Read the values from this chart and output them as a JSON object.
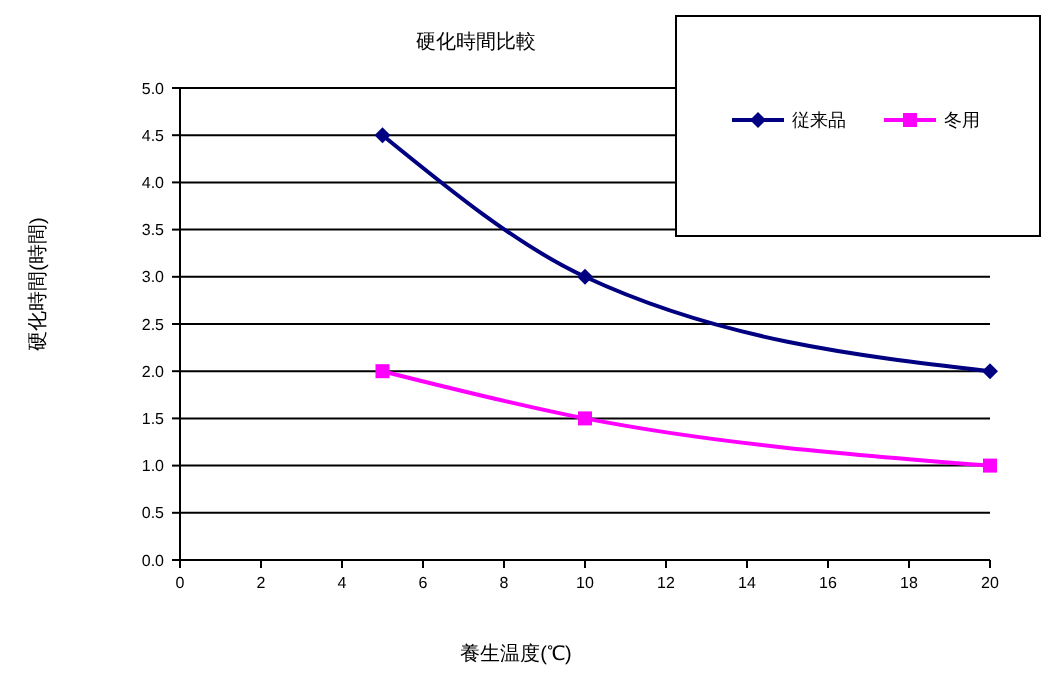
{
  "chart_data": {
    "type": "line",
    "title": "硬化時間比較",
    "xlabel": "養生温度(℃)",
    "ylabel": "硬化時間(時間)",
    "xlim": [
      0,
      20
    ],
    "xticks": [
      0,
      2,
      4,
      6,
      8,
      10,
      12,
      14,
      16,
      18,
      20
    ],
    "ylim": [
      0,
      5
    ],
    "yticks": [
      {
        "value": 0,
        "label": "0.0"
      },
      {
        "value": 0.5,
        "label": "0.5"
      },
      {
        "value": 1,
        "label": "1.0"
      },
      {
        "value": 1.5,
        "label": "1.5"
      },
      {
        "value": 2,
        "label": "2.0"
      },
      {
        "value": 2.5,
        "label": "2.5"
      },
      {
        "value": 3,
        "label": "3.0"
      },
      {
        "value": 3.5,
        "label": "3.5"
      },
      {
        "value": 4,
        "label": "4.0"
      },
      {
        "value": 4.5,
        "label": "4.5"
      },
      {
        "value": 5,
        "label": "5.0"
      }
    ],
    "grid": "y",
    "legend": "top right",
    "x": [
      5,
      10,
      20
    ],
    "series": [
      {
        "name": "従来品",
        "color": "#000080",
        "marker": "diamond",
        "values": [
          4.5,
          3.0,
          2.0
        ]
      },
      {
        "name": "冬用",
        "color": "#ff00ff",
        "marker": "square",
        "values": [
          2.0,
          1.5,
          1.0
        ]
      }
    ]
  }
}
